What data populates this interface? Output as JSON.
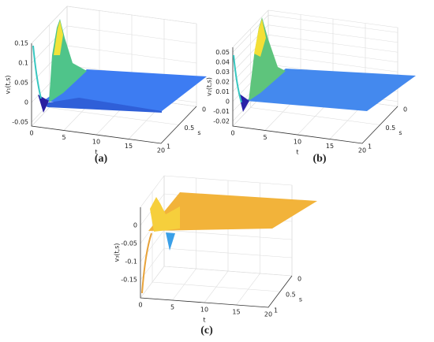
{
  "chart_data": [
    {
      "type": "surface",
      "caption": "(a)",
      "xlabel": "t",
      "ylabel": "s",
      "zlabel": "v₁(t,s)",
      "xlim": [
        0,
        20
      ],
      "ylim": [
        0,
        1
      ],
      "zlim": [
        -0.06,
        0.15
      ],
      "xticks": [
        0,
        5,
        10,
        15,
        20
      ],
      "yticks": [
        0,
        0.5,
        1
      ],
      "zticks": [
        -0.05,
        0,
        0.05,
        0.1,
        0.15
      ],
      "grid": true
    },
    {
      "type": "surface",
      "caption": "(b)",
      "xlabel": "t",
      "ylabel": "s",
      "zlabel": "v₂(t,s)",
      "xlim": [
        0,
        20
      ],
      "ylim": [
        0,
        1
      ],
      "zlim": [
        -0.025,
        0.055
      ],
      "xticks": [
        0,
        5,
        10,
        15,
        20
      ],
      "yticks": [
        0,
        0.5,
        1
      ],
      "zticks": [
        -0.02,
        -0.01,
        0,
        0.01,
        0.02,
        0.03,
        0.04,
        0.05
      ],
      "grid": true
    },
    {
      "type": "surface",
      "caption": "(c)",
      "xlabel": "t",
      "ylabel": "s",
      "zlabel": "v₃(t,s)",
      "xlim": [
        0,
        20
      ],
      "ylim": [
        0,
        1
      ],
      "zlim": [
        -0.2,
        0.05
      ],
      "xticks": [
        0,
        5,
        10,
        15,
        20
      ],
      "yticks": [
        0,
        0.5,
        1
      ],
      "zticks": [
        -0.15,
        -0.1,
        -0.05,
        0
      ],
      "grid": true
    }
  ]
}
